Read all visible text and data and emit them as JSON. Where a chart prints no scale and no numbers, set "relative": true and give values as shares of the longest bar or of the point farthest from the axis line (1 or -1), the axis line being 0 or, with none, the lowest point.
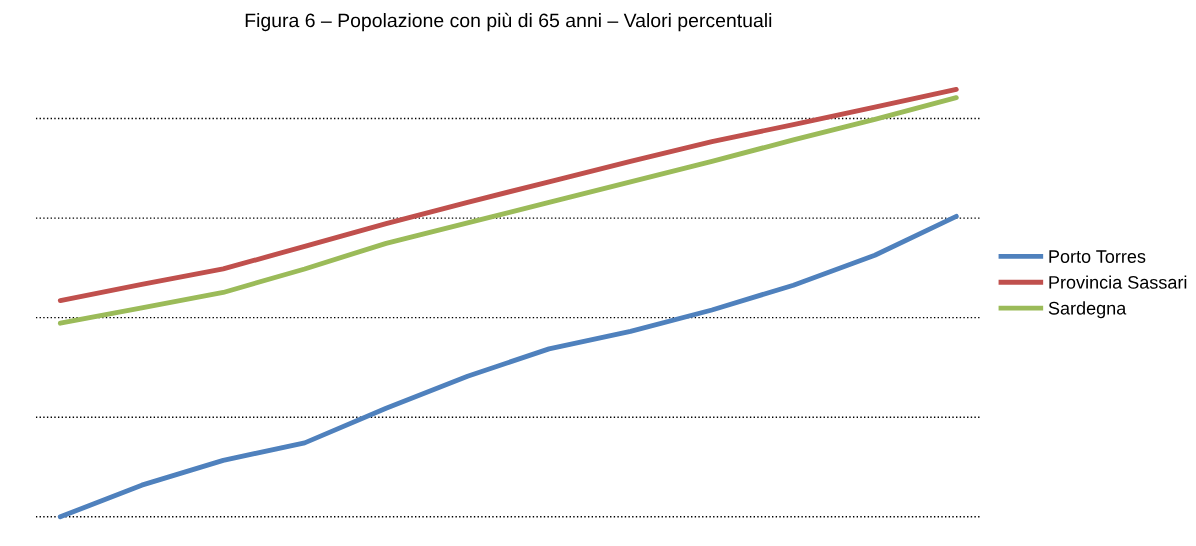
{
  "chart_data": {
    "type": "line",
    "title": "Figura 6 – Popolazione con più di 65 anni – Valori percentuali",
    "relative": true,
    "categories": [
      null,
      null,
      null,
      null,
      null,
      null,
      null,
      null,
      null,
      null,
      null,
      null
    ],
    "series": [
      {
        "name": "Porto Torres",
        "color": "#4f81bd",
        "values": [
          0,
          0.074,
          0.132,
          0.173,
          0.254,
          0.329,
          0.393,
          0.434,
          0.484,
          0.542,
          0.612,
          0.703
        ]
      },
      {
        "name": "Provincia Sassari",
        "color": "#c0504d",
        "values": [
          0.506,
          0.544,
          0.58,
          0.633,
          0.686,
          0.736,
          0.784,
          0.832,
          0.878,
          0.918,
          0.959,
          1
        ]
      },
      {
        "name": "Sardegna",
        "color": "#9bbb59",
        "values": [
          0.453,
          0.489,
          0.525,
          0.58,
          0.64,
          0.688,
          0.736,
          0.784,
          0.832,
          0.882,
          0.93,
          0.981
        ]
      }
    ],
    "grid": "y",
    "legend": "right",
    "line_style": "solid",
    "marker": "none"
  }
}
